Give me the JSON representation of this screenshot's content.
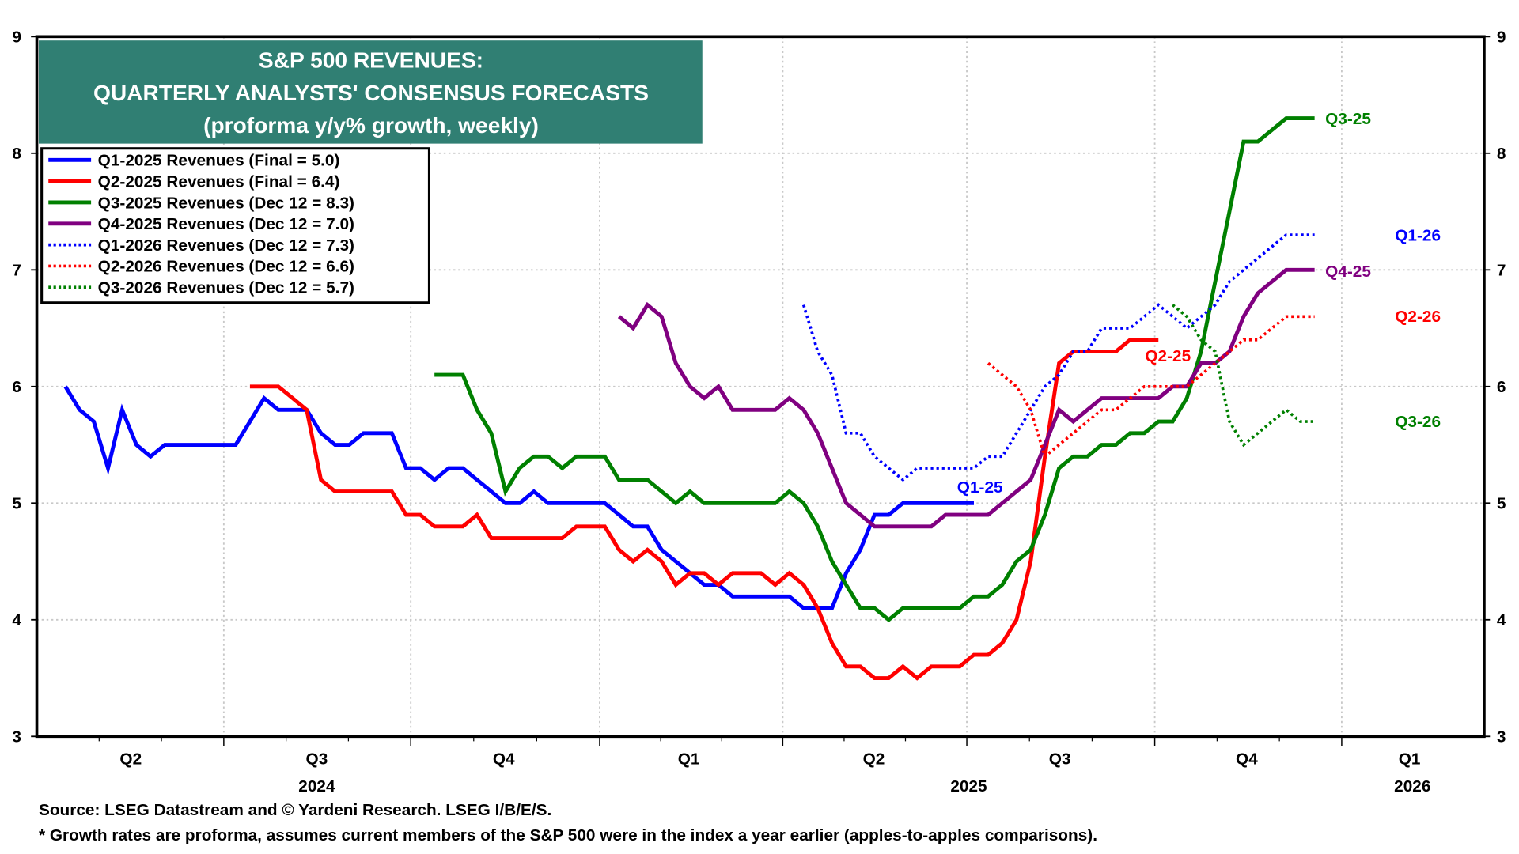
{
  "chart_data": {
    "type": "line",
    "title": [
      "S&P 500 REVENUES:",
      "QUARTERLY ANALYSTS' CONSENSUS FORECASTS",
      "(proforma y/y% growth, weekly)"
    ],
    "ylim": [
      3,
      9
    ],
    "yticks": [
      "3",
      "4",
      "5",
      "6",
      "7",
      "8",
      "9"
    ],
    "y_axis_both_sides": true,
    "grid": true,
    "legend_placement": "top-left",
    "x_quarter_labels": [
      "Q2",
      "Q3",
      "Q4",
      "Q1",
      "Q2",
      "Q3",
      "Q4",
      "Q1"
    ],
    "x_year_labels": [
      "2024",
      "2025",
      "2026"
    ],
    "dates": [
      "2024-04-05",
      "2024-04-12",
      "2024-04-19",
      "2024-04-26",
      "2024-05-03",
      "2024-05-10",
      "2024-05-17",
      "2024-05-24",
      "2024-05-31",
      "2024-06-07",
      "2024-06-14",
      "2024-06-21",
      "2024-06-28",
      "2024-07-05",
      "2024-07-12",
      "2024-07-19",
      "2024-07-26",
      "2024-08-02",
      "2024-08-09",
      "2024-08-16",
      "2024-08-23",
      "2024-08-30",
      "2024-09-06",
      "2024-09-13",
      "2024-09-20",
      "2024-09-27",
      "2024-10-04",
      "2024-10-11",
      "2024-10-18",
      "2024-10-25",
      "2024-11-01",
      "2024-11-08",
      "2024-11-15",
      "2024-11-22",
      "2024-11-29",
      "2024-12-06",
      "2024-12-13",
      "2024-12-20",
      "2024-12-27",
      "2025-01-03",
      "2025-01-10",
      "2025-01-17",
      "2025-01-24",
      "2025-01-31",
      "2025-02-07",
      "2025-02-14",
      "2025-02-21",
      "2025-02-28",
      "2025-03-07",
      "2025-03-14",
      "2025-03-21",
      "2025-03-28",
      "2025-04-04",
      "2025-04-11",
      "2025-04-18",
      "2025-04-25",
      "2025-05-02",
      "2025-05-09",
      "2025-05-16",
      "2025-05-23",
      "2025-05-30",
      "2025-06-06",
      "2025-06-13",
      "2025-06-20",
      "2025-06-27",
      "2025-07-04",
      "2025-07-11",
      "2025-07-18",
      "2025-07-25",
      "2025-08-01",
      "2025-08-08",
      "2025-08-15",
      "2025-08-22",
      "2025-08-29",
      "2025-09-05",
      "2025-09-12",
      "2025-09-19",
      "2025-09-26",
      "2025-10-03",
      "2025-10-10",
      "2025-10-17",
      "2025-10-24",
      "2025-10-31",
      "2025-11-07",
      "2025-11-14",
      "2025-11-21",
      "2025-11-28",
      "2025-12-05",
      "2025-12-12"
    ],
    "series": [
      {
        "name": "Q1-2025 Revenues (Final = 5.0)",
        "end_label": "Q1-25",
        "color": "#0000ff",
        "style": "solid",
        "values": [
          6.0,
          5.8,
          5.7,
          5.3,
          5.8,
          5.5,
          5.4,
          5.5,
          5.5,
          5.5,
          5.5,
          5.5,
          5.5,
          5.7,
          5.9,
          5.8,
          5.8,
          5.8,
          5.6,
          5.5,
          5.5,
          5.6,
          5.6,
          5.6,
          5.3,
          5.3,
          5.2,
          5.3,
          5.3,
          5.2,
          5.1,
          5.0,
          5.0,
          5.1,
          5.0,
          5.0,
          5.0,
          5.0,
          5.0,
          4.9,
          4.8,
          4.8,
          4.6,
          4.5,
          4.4,
          4.3,
          4.3,
          4.2,
          4.2,
          4.2,
          4.2,
          4.2,
          4.1,
          4.1,
          4.1,
          4.4,
          4.6,
          4.9,
          4.9,
          5.0,
          5.0,
          5.0,
          5.0,
          5.0,
          5.0,
          null,
          null,
          null,
          null,
          null,
          null,
          null,
          null,
          null,
          null,
          null,
          null,
          null,
          null,
          null,
          null,
          null,
          null,
          null,
          null,
          null,
          null,
          null,
          null
        ]
      },
      {
        "name": "Q2-2025 Revenues (Final = 6.4)",
        "end_label": "Q2-25",
        "color": "#ff0000",
        "style": "solid",
        "values": [
          null,
          null,
          null,
          null,
          null,
          null,
          null,
          null,
          null,
          null,
          null,
          null,
          null,
          6.0,
          6.0,
          6.0,
          5.9,
          5.8,
          5.2,
          5.1,
          5.1,
          5.1,
          5.1,
          5.1,
          4.9,
          4.9,
          4.8,
          4.8,
          4.8,
          4.9,
          4.7,
          4.7,
          4.7,
          4.7,
          4.7,
          4.7,
          4.8,
          4.8,
          4.8,
          4.6,
          4.5,
          4.6,
          4.5,
          4.3,
          4.4,
          4.4,
          4.3,
          4.4,
          4.4,
          4.4,
          4.3,
          4.4,
          4.3,
          4.1,
          3.8,
          3.6,
          3.6,
          3.5,
          3.5,
          3.6,
          3.5,
          3.6,
          3.6,
          3.6,
          3.7,
          3.7,
          3.8,
          4.0,
          4.5,
          5.4,
          6.2,
          6.3,
          6.3,
          6.3,
          6.3,
          6.4,
          6.4,
          6.4,
          null,
          null,
          null,
          null,
          null,
          null,
          null,
          null,
          null,
          null,
          null
        ]
      },
      {
        "name": "Q3-2025 Revenues (Dec 12 = 8.3)",
        "end_label": "Q3-25",
        "color": "#008000",
        "style": "solid",
        "values": [
          null,
          null,
          null,
          null,
          null,
          null,
          null,
          null,
          null,
          null,
          null,
          null,
          null,
          null,
          null,
          null,
          null,
          null,
          null,
          null,
          null,
          null,
          null,
          null,
          null,
          null,
          6.1,
          6.1,
          6.1,
          5.8,
          5.6,
          5.1,
          5.3,
          5.4,
          5.4,
          5.3,
          5.4,
          5.4,
          5.4,
          5.2,
          5.2,
          5.2,
          5.1,
          5.0,
          5.1,
          5.0,
          5.0,
          5.0,
          5.0,
          5.0,
          5.0,
          5.1,
          5.0,
          4.8,
          4.5,
          4.3,
          4.1,
          4.1,
          4.0,
          4.1,
          4.1,
          4.1,
          4.1,
          4.1,
          4.2,
          4.2,
          4.3,
          4.5,
          4.6,
          4.9,
          5.3,
          5.4,
          5.4,
          5.5,
          5.5,
          5.6,
          5.6,
          5.7,
          5.7,
          5.9,
          6.3,
          6.9,
          7.5,
          8.1,
          8.1,
          8.2,
          8.3,
          8.3,
          8.3
        ]
      },
      {
        "name": "Q4-2025 Revenues (Dec 12 = 7.0)",
        "end_label": "Q4-25",
        "color": "#800080",
        "style": "solid",
        "values": [
          null,
          null,
          null,
          null,
          null,
          null,
          null,
          null,
          null,
          null,
          null,
          null,
          null,
          null,
          null,
          null,
          null,
          null,
          null,
          null,
          null,
          null,
          null,
          null,
          null,
          null,
          null,
          null,
          null,
          null,
          null,
          null,
          null,
          null,
          null,
          null,
          null,
          null,
          null,
          6.6,
          6.5,
          6.7,
          6.6,
          6.2,
          6.0,
          5.9,
          6.0,
          5.8,
          5.8,
          5.8,
          5.8,
          5.9,
          5.8,
          5.6,
          5.3,
          5.0,
          4.9,
          4.8,
          4.8,
          4.8,
          4.8,
          4.8,
          4.9,
          4.9,
          4.9,
          4.9,
          5.0,
          5.1,
          5.2,
          5.5,
          5.8,
          5.7,
          5.8,
          5.9,
          5.9,
          5.9,
          5.9,
          5.9,
          6.0,
          6.0,
          6.2,
          6.2,
          6.3,
          6.6,
          6.8,
          6.9,
          7.0,
          7.0,
          7.0
        ]
      },
      {
        "name": "Q1-2026 Revenues (Dec 12 = 7.3)",
        "end_label": "Q1-26",
        "color": "#0000ff",
        "style": "dotted",
        "values": [
          null,
          null,
          null,
          null,
          null,
          null,
          null,
          null,
          null,
          null,
          null,
          null,
          null,
          null,
          null,
          null,
          null,
          null,
          null,
          null,
          null,
          null,
          null,
          null,
          null,
          null,
          null,
          null,
          null,
          null,
          null,
          null,
          null,
          null,
          null,
          null,
          null,
          null,
          null,
          null,
          null,
          null,
          null,
          null,
          null,
          null,
          null,
          null,
          null,
          null,
          null,
          null,
          6.7,
          6.3,
          6.1,
          5.6,
          5.6,
          5.4,
          5.3,
          5.2,
          5.3,
          5.3,
          5.3,
          5.3,
          5.3,
          5.4,
          5.4,
          5.6,
          5.8,
          6.0,
          6.1,
          6.3,
          6.3,
          6.5,
          6.5,
          6.5,
          6.6,
          6.7,
          6.6,
          6.5,
          6.6,
          6.7,
          6.9,
          7.0,
          7.1,
          7.2,
          7.3,
          7.3,
          7.3
        ]
      },
      {
        "name": "Q2-2026 Revenues (Dec 12 = 6.6)",
        "end_label": "Q2-26",
        "color": "#ff0000",
        "style": "dotted",
        "values": [
          null,
          null,
          null,
          null,
          null,
          null,
          null,
          null,
          null,
          null,
          null,
          null,
          null,
          null,
          null,
          null,
          null,
          null,
          null,
          null,
          null,
          null,
          null,
          null,
          null,
          null,
          null,
          null,
          null,
          null,
          null,
          null,
          null,
          null,
          null,
          null,
          null,
          null,
          null,
          null,
          null,
          null,
          null,
          null,
          null,
          null,
          null,
          null,
          null,
          null,
          null,
          null,
          null,
          null,
          null,
          null,
          null,
          null,
          null,
          null,
          null,
          null,
          null,
          null,
          null,
          6.2,
          6.1,
          6.0,
          5.8,
          5.4,
          5.5,
          5.6,
          5.7,
          5.8,
          5.8,
          5.9,
          6.0,
          6.0,
          6.0,
          6.0,
          6.1,
          6.2,
          6.3,
          6.4,
          6.4,
          6.5,
          6.6,
          6.6,
          6.6
        ]
      },
      {
        "name": "Q3-2026 Revenues (Dec 12 = 5.7)",
        "end_label": "Q3-26",
        "color": "#008000",
        "style": "dotted",
        "values": [
          null,
          null,
          null,
          null,
          null,
          null,
          null,
          null,
          null,
          null,
          null,
          null,
          null,
          null,
          null,
          null,
          null,
          null,
          null,
          null,
          null,
          null,
          null,
          null,
          null,
          null,
          null,
          null,
          null,
          null,
          null,
          null,
          null,
          null,
          null,
          null,
          null,
          null,
          null,
          null,
          null,
          null,
          null,
          null,
          null,
          null,
          null,
          null,
          null,
          null,
          null,
          null,
          null,
          null,
          null,
          null,
          null,
          null,
          null,
          null,
          null,
          null,
          null,
          null,
          null,
          null,
          null,
          null,
          null,
          null,
          null,
          null,
          null,
          null,
          null,
          null,
          null,
          null,
          6.7,
          6.6,
          6.4,
          6.3,
          5.7,
          5.5,
          5.6,
          5.7,
          5.8,
          5.7,
          5.7
        ]
      }
    ],
    "source": "Source: LSEG Datastream and © Yardeni Research. LSEG I/B/E/S.",
    "footnote": "* Growth rates are proforma, assumes current members of the S&P 500 were in the index a year earlier (apples-to-apples comparisons).",
    "title_box_color": "#307f73"
  }
}
